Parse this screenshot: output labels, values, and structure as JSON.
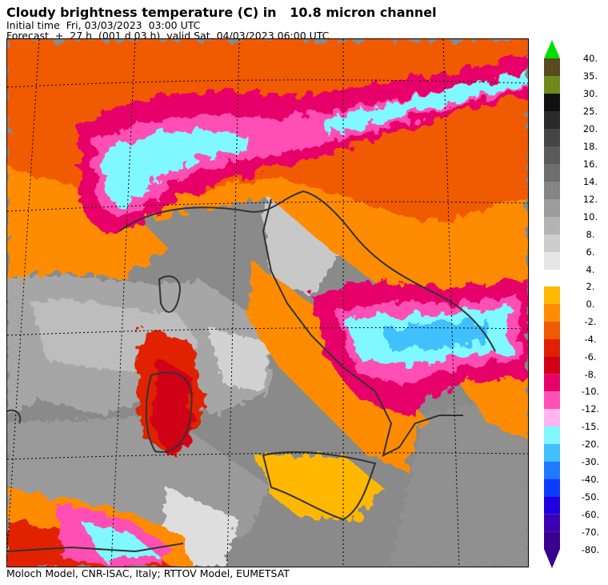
{
  "header": {
    "title": "Cloudy brightness temperature (C) in   10.8 micron channel",
    "initial_time": "Initial time  Fri, 03/03/2023  03:00 UTC",
    "forecast": "Forecast  +  27 h  (001 d 03 h)  valid Sat, 04/03/2023 06:00 UTC"
  },
  "footer": "Moloch Model, CNR-ISAC, Italy; RTTOV Model, EUMETSAT",
  "colorbar": {
    "upper": {
      "labels": [
        "40.",
        "35.",
        "30.",
        "25.",
        "20.",
        "18.",
        "16.",
        "14.",
        "12.",
        "10.",
        "8.",
        "6.",
        "4."
      ],
      "colors": [
        "#00e000",
        "#5a4a20",
        "#6f8a1c",
        "#101010",
        "#2a2a2a",
        "#454545",
        "#5a5a5a",
        "#6e6e6e",
        "#848484",
        "#9c9c9c",
        "#b4b4b4",
        "#cdcdcd",
        "#e6e6e6"
      ]
    },
    "lower": {
      "labels": [
        "2.",
        "0.",
        "-2.",
        "-4.",
        "-6.",
        "-8.",
        "-10.",
        "-12.",
        "-15.",
        "-20.",
        "-30.",
        "-40.",
        "-50.",
        "-60.",
        "-70.",
        "-80."
      ],
      "colors": [
        "#ffb800",
        "#ff8c00",
        "#f05a00",
        "#e02000",
        "#d00018",
        "#e8006a",
        "#ff50b4",
        "#ffb4f0",
        "#7ff8ff",
        "#40c0ff",
        "#1e7aff",
        "#0a3cff",
        "#1e00e0",
        "#3c00b4",
        "#3a0090"
      ]
    }
  },
  "map": {
    "land_color": "#8c8c8c",
    "sea_color": "#7a7a7a"
  }
}
